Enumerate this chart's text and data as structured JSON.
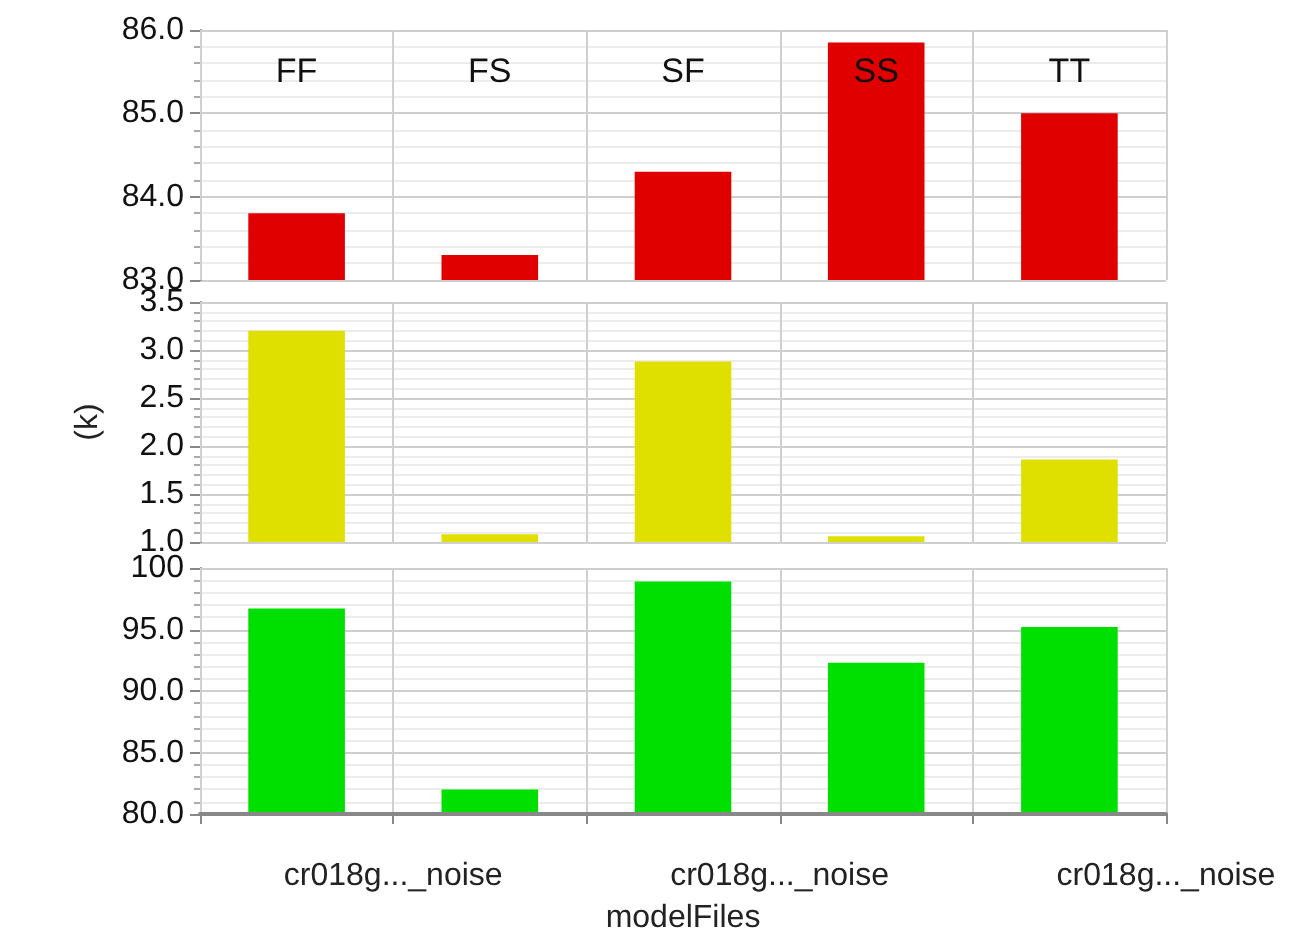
{
  "chart_data": [
    {
      "type": "bar",
      "categories": [
        "FF",
        "FS",
        "SF",
        "SS",
        "TT"
      ],
      "series": [
        {
          "color": "#e00000",
          "values": [
            83.8,
            83.3,
            84.3,
            85.85,
            85.0
          ]
        }
      ],
      "ylim": [
        83,
        86
      ],
      "yticks": [
        {
          "value": 83,
          "label": "83.0"
        },
        {
          "value": 84,
          "label": "84.0"
        },
        {
          "value": 85,
          "label": "85.0"
        },
        {
          "value": 86,
          "label": "86.0"
        }
      ],
      "grid": true
    },
    {
      "type": "bar",
      "series": [
        {
          "color": "#e0e000",
          "values": [
            3.2,
            1.08,
            2.88,
            1.06,
            1.86
          ]
        }
      ],
      "ylabel": "(k)",
      "ylim": [
        1,
        3.5
      ],
      "yticks": [
        {
          "value": 1,
          "label": "1.0"
        },
        {
          "value": 1.5,
          "label": "1.5"
        },
        {
          "value": 2,
          "label": "2.0"
        },
        {
          "value": 2.5,
          "label": "2.5"
        },
        {
          "value": 3,
          "label": "3.0"
        },
        {
          "value": 3.5,
          "label": "3.5"
        }
      ],
      "grid": true
    },
    {
      "type": "bar",
      "series": [
        {
          "color": "#00e000",
          "values": [
            96.7,
            82.0,
            98.9,
            92.3,
            95.2
          ]
        }
      ],
      "xlabel": "modelFiles",
      "annotations": [
        "cr018g..._noise",
        "cr018g..._noise",
        "cr018g..._noise"
      ],
      "ylim": [
        80,
        100
      ],
      "yticks": [
        {
          "value": 80,
          "label": "80.0"
        },
        {
          "value": 85,
          "label": "85.0"
        },
        {
          "value": 90,
          "label": "90.0"
        },
        {
          "value": 95,
          "label": "95.0"
        },
        {
          "value": 100,
          "label": "100"
        }
      ],
      "grid": true
    }
  ]
}
